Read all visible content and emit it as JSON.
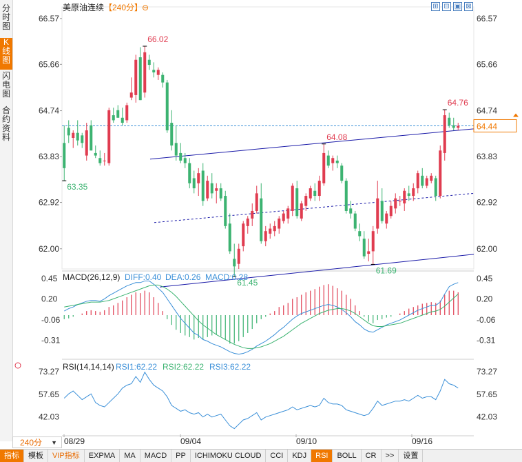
{
  "side_tabs": [
    "分时图",
    "K线图",
    "闪电图",
    "合约资料"
  ],
  "header": {
    "symbol": "美原油连续",
    "period": "【240分】",
    "refresh_icon": "⊖"
  },
  "tools": [
    "⊞",
    "⊟",
    "▣",
    "⊠"
  ],
  "price_axis": {
    "ticks": [
      "66.57",
      "65.66",
      "64.74",
      "63.83",
      "62.92",
      "62.00"
    ],
    "values": [
      66.57,
      65.66,
      64.74,
      63.83,
      62.92,
      62.0
    ],
    "current": "64.44"
  },
  "annotations": {
    "high": "66.02",
    "low1": "63.35",
    "mid": "64.08",
    "low2": "61.45",
    "low3": "61.69",
    "right_high": "64.76"
  },
  "macd": {
    "label": "MACD(26,12,9)",
    "diff": "DIFF:0.40",
    "dea": "DEA:0.26",
    "macd": "MACD:0.28",
    "ticks": [
      "0.45",
      "0.20",
      "-0.06",
      "-0.31"
    ]
  },
  "rsi": {
    "label": "RSI(14,14,14)",
    "rsi1": "RSI1:62.22",
    "rsi2": "RSI2:62.22",
    "rsi3": "RSI3:62.22",
    "ticks": [
      "73.27",
      "57.65",
      "42.03"
    ]
  },
  "dates": [
    "08/29",
    "09/04",
    "09/10",
    "09/16"
  ],
  "timeframe": "240分",
  "bottom_tabs": [
    "指标",
    "模板",
    "VIP指标",
    "EXPMA",
    "MA",
    "MACD",
    "PP",
    "ICHIMOKU CLOUD",
    "CCI",
    "KDJ",
    "RSI",
    "BOLL",
    "CR",
    ">>",
    "设置"
  ],
  "colors": {
    "up": "#e03c50",
    "down": "#3cb371",
    "diff": "#3a8fd8",
    "dea": "#3cb371",
    "channel": "#1a1aa8",
    "accent": "#f07800"
  },
  "chart_data": {
    "type": "candlestick",
    "title": "美原油连续",
    "period": "240分",
    "ohlc": [
      [
        64.1,
        64.45,
        63.35,
        63.6
      ],
      [
        64.4,
        64.55,
        64.1,
        64.25
      ],
      [
        64.2,
        64.35,
        64.0,
        64.3
      ],
      [
        64.3,
        64.55,
        64.05,
        64.15
      ],
      [
        64.25,
        64.3,
        64.0,
        64.1
      ],
      [
        63.85,
        64.5,
        63.75,
        64.35
      ],
      [
        64.45,
        64.55,
        63.95,
        63.95
      ],
      [
        63.9,
        64.05,
        63.8,
        63.85
      ],
      [
        63.8,
        63.95,
        63.65,
        63.7
      ],
      [
        63.75,
        63.9,
        63.65,
        63.75
      ],
      [
        63.7,
        64.8,
        63.65,
        64.75
      ],
      [
        64.65,
        64.8,
        64.5,
        64.55
      ],
      [
        64.75,
        64.85,
        64.6,
        64.6
      ],
      [
        64.6,
        64.8,
        64.45,
        64.5
      ],
      [
        64.55,
        64.9,
        64.5,
        64.85
      ],
      [
        65.0,
        65.4,
        64.95,
        65.1
      ],
      [
        65.05,
        65.85,
        64.9,
        65.75
      ],
      [
        65.8,
        66.0,
        64.95,
        64.95
      ],
      [
        65.1,
        66.02,
        65.0,
        65.9
      ],
      [
        65.75,
        65.85,
        65.55,
        65.65
      ],
      [
        65.55,
        65.7,
        65.4,
        65.5
      ],
      [
        65.45,
        65.6,
        65.35,
        65.55
      ],
      [
        65.45,
        65.5,
        65.2,
        65.3
      ],
      [
        65.3,
        65.35,
        64.3,
        64.35
      ],
      [
        64.5,
        64.75,
        63.95,
        64.05
      ],
      [
        64.1,
        64.45,
        63.75,
        63.85
      ],
      [
        63.9,
        64.1,
        63.7,
        63.75
      ],
      [
        63.8,
        63.9,
        63.6,
        63.7
      ],
      [
        63.7,
        63.8,
        63.2,
        63.3
      ],
      [
        63.4,
        63.55,
        63.1,
        63.2
      ],
      [
        63.3,
        63.6,
        63.05,
        63.5
      ],
      [
        63.55,
        63.7,
        62.85,
        62.95
      ],
      [
        63.0,
        63.45,
        62.95,
        63.35
      ],
      [
        63.3,
        63.5,
        63.0,
        63.1
      ],
      [
        63.15,
        63.3,
        62.9,
        63.2
      ],
      [
        63.2,
        63.3,
        62.95,
        63.0
      ],
      [
        63.05,
        63.15,
        62.4,
        62.45
      ],
      [
        62.5,
        62.7,
        61.9,
        61.95
      ],
      [
        61.8,
        62.1,
        61.45,
        61.65
      ],
      [
        61.7,
        62.1,
        61.6,
        62.0
      ],
      [
        62.05,
        62.55,
        61.95,
        62.5
      ],
      [
        62.45,
        62.65,
        62.3,
        62.6
      ],
      [
        62.6,
        62.9,
        62.45,
        62.75
      ],
      [
        62.75,
        63.25,
        62.7,
        63.1
      ],
      [
        63.0,
        63.3,
        62.1,
        62.15
      ],
      [
        62.15,
        62.45,
        62.05,
        62.35
      ],
      [
        62.3,
        62.5,
        62.2,
        62.4
      ],
      [
        62.35,
        62.55,
        62.25,
        62.45
      ],
      [
        62.4,
        62.65,
        62.3,
        62.6
      ],
      [
        62.55,
        62.75,
        62.5,
        62.7
      ],
      [
        62.6,
        62.85,
        62.5,
        62.8
      ],
      [
        62.75,
        63.3,
        62.65,
        63.25
      ],
      [
        63.2,
        63.35,
        62.6,
        62.65
      ],
      [
        62.6,
        62.95,
        62.55,
        62.9
      ],
      [
        62.85,
        63.1,
        62.75,
        63.05
      ],
      [
        63.0,
        63.25,
        62.95,
        63.2
      ],
      [
        63.15,
        63.3,
        62.95,
        63.05
      ],
      [
        63.05,
        63.45,
        62.95,
        63.35
      ],
      [
        63.3,
        64.08,
        63.25,
        63.9
      ],
      [
        63.85,
        63.95,
        63.6,
        63.65
      ],
      [
        63.7,
        63.85,
        63.55,
        63.8
      ],
      [
        63.75,
        63.85,
        63.6,
        63.7
      ],
      [
        63.65,
        63.7,
        63.3,
        63.35
      ],
      [
        63.35,
        63.4,
        62.7,
        62.75
      ],
      [
        62.8,
        62.95,
        62.6,
        62.7
      ],
      [
        62.7,
        62.75,
        62.35,
        62.4
      ],
      [
        62.35,
        62.5,
        62.15,
        62.25
      ],
      [
        62.2,
        62.35,
        61.8,
        61.85
      ],
      [
        61.9,
        62.2,
        61.75,
        61.95
      ],
      [
        61.95,
        62.45,
        61.69,
        62.35
      ],
      [
        62.4,
        63.35,
        62.3,
        63.0
      ],
      [
        62.95,
        63.2,
        62.5,
        62.55
      ],
      [
        62.5,
        62.75,
        62.4,
        62.7
      ],
      [
        62.65,
        62.95,
        62.6,
        62.85
      ],
      [
        62.8,
        63.1,
        62.7,
        63.0
      ],
      [
        62.95,
        63.05,
        62.85,
        62.95
      ],
      [
        62.9,
        63.2,
        62.75,
        63.15
      ],
      [
        63.1,
        63.25,
        62.95,
        63.05
      ],
      [
        63.05,
        63.3,
        62.95,
        63.2
      ],
      [
        63.2,
        63.55,
        63.1,
        63.5
      ],
      [
        63.45,
        63.6,
        63.2,
        63.25
      ],
      [
        63.25,
        63.45,
        63.2,
        63.4
      ],
      [
        63.35,
        63.5,
        63.3,
        63.45
      ],
      [
        63.4,
        63.45,
        62.95,
        63.05
      ],
      [
        63.05,
        64.05,
        63.0,
        63.95
      ],
      [
        63.9,
        64.76,
        63.75,
        64.65
      ],
      [
        64.6,
        64.7,
        64.4,
        64.45
      ],
      [
        64.45,
        64.6,
        64.35,
        64.4
      ],
      [
        64.4,
        64.5,
        64.35,
        64.44
      ]
    ],
    "macd_hist": [
      -0.05,
      -0.04,
      -0.02,
      0.0,
      0.02,
      0.05,
      0.06,
      0.05,
      0.04,
      0.06,
      0.1,
      0.12,
      0.15,
      0.18,
      0.22,
      0.25,
      0.28,
      0.27,
      0.3,
      0.28,
      0.22,
      0.15,
      0.05,
      -0.05,
      -0.12,
      -0.18,
      -0.22,
      -0.25,
      -0.27,
      -0.3,
      -0.28,
      -0.3,
      -0.27,
      -0.25,
      -0.24,
      -0.26,
      -0.3,
      -0.35,
      -0.35,
      -0.32,
      -0.27,
      -0.22,
      -0.17,
      -0.1,
      -0.05,
      -0.02,
      0.02,
      0.05,
      0.1,
      0.12,
      0.15,
      0.2,
      0.22,
      0.25,
      0.28,
      0.3,
      0.32,
      0.35,
      0.37,
      0.38,
      0.36,
      0.33,
      0.3,
      0.25,
      0.2,
      0.12,
      0.05,
      -0.02,
      -0.08,
      -0.1,
      -0.06,
      -0.05,
      -0.03,
      -0.02,
      0.0,
      0.02,
      0.05,
      0.08,
      0.1,
      0.12,
      0.14,
      0.15,
      0.16,
      0.15,
      0.18,
      0.25,
      0.3,
      0.3,
      0.28
    ],
    "diff": [
      0.05,
      0.08,
      0.1,
      0.13,
      0.15,
      0.17,
      0.18,
      0.18,
      0.17,
      0.2,
      0.24,
      0.27,
      0.3,
      0.33,
      0.36,
      0.38,
      0.4,
      0.4,
      0.42,
      0.42,
      0.38,
      0.33,
      0.28,
      0.2,
      0.12,
      0.04,
      -0.04,
      -0.1,
      -0.16,
      -0.22,
      -0.25,
      -0.3,
      -0.32,
      -0.35,
      -0.37,
      -0.39,
      -0.42,
      -0.45,
      -0.47,
      -0.48,
      -0.47,
      -0.45,
      -0.42,
      -0.38,
      -0.35,
      -0.32,
      -0.28,
      -0.24,
      -0.19,
      -0.15,
      -0.1,
      -0.05,
      -0.01,
      0.02,
      0.04,
      0.06,
      0.08,
      0.1,
      0.12,
      0.13,
      0.12,
      0.1,
      0.07,
      0.03,
      -0.02,
      -0.08,
      -0.12,
      -0.17,
      -0.2,
      -0.21,
      -0.18,
      -0.15,
      -0.12,
      -0.1,
      -0.08,
      -0.06,
      -0.03,
      0.0,
      0.03,
      0.06,
      0.08,
      0.1,
      0.12,
      0.12,
      0.16,
      0.26,
      0.35,
      0.38,
      0.4
    ],
    "dea": [
      0.1,
      0.11,
      0.12,
      0.13,
      0.14,
      0.15,
      0.16,
      0.16,
      0.16,
      0.17,
      0.18,
      0.2,
      0.22,
      0.24,
      0.26,
      0.28,
      0.3,
      0.32,
      0.34,
      0.36,
      0.37,
      0.37,
      0.35,
      0.32,
      0.28,
      0.23,
      0.17,
      0.11,
      0.05,
      -0.01,
      -0.07,
      -0.12,
      -0.16,
      -0.2,
      -0.24,
      -0.27,
      -0.3,
      -0.33,
      -0.36,
      -0.38,
      -0.4,
      -0.41,
      -0.41,
      -0.4,
      -0.39,
      -0.37,
      -0.35,
      -0.32,
      -0.29,
      -0.26,
      -0.22,
      -0.18,
      -0.14,
      -0.1,
      -0.07,
      -0.04,
      -0.01,
      0.02,
      0.04,
      0.06,
      0.07,
      0.08,
      0.08,
      0.07,
      0.05,
      0.02,
      -0.02,
      -0.06,
      -0.1,
      -0.13,
      -0.14,
      -0.14,
      -0.13,
      -0.12,
      -0.11,
      -0.1,
      -0.08,
      -0.06,
      -0.04,
      -0.02,
      0.0,
      0.02,
      0.04,
      0.05,
      0.07,
      0.11,
      0.16,
      0.21,
      0.26
    ],
    "rsi": [
      55,
      58,
      60,
      57,
      54,
      56,
      58,
      52,
      50,
      49,
      52,
      55,
      58,
      62,
      64,
      65,
      70,
      66,
      73,
      68,
      64,
      62,
      60,
      56,
      50,
      48,
      46,
      47,
      45,
      44,
      45,
      42,
      44,
      42,
      43,
      44,
      40,
      36,
      34,
      37,
      40,
      41,
      43,
      45,
      40,
      42,
      43,
      44,
      45,
      46,
      47,
      49,
      47,
      48,
      49,
      50,
      49,
      50,
      55,
      52,
      51,
      51,
      50,
      47,
      46,
      45,
      44,
      43,
      44,
      48,
      53,
      50,
      51,
      52,
      53,
      53,
      54,
      53,
      55,
      57,
      55,
      56,
      56,
      54,
      60,
      68,
      65,
      64,
      62
    ],
    "channel": {
      "upper": [
        63.78,
        64.38
      ],
      "middle": [
        62.52,
        63.1
      ],
      "lower": [
        61.24,
        61.89
      ]
    },
    "ylim": [
      61.6,
      66.8
    ],
    "macd_ylim": [
      -0.5,
      0.5
    ],
    "rsi_ylim": [
      30,
      80
    ]
  }
}
